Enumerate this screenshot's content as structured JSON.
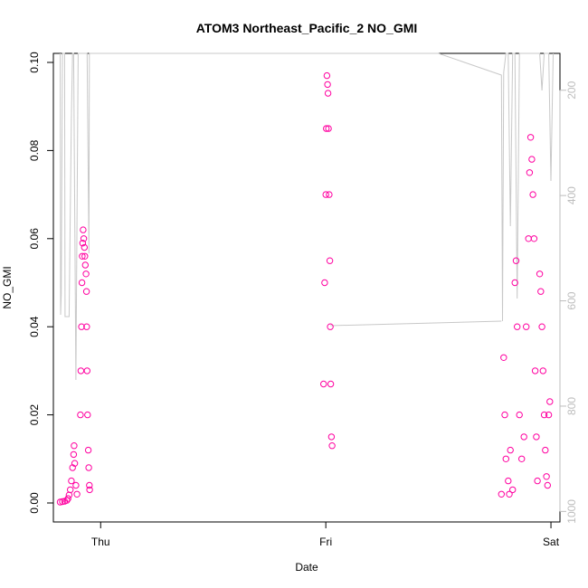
{
  "chart_data": {
    "type": "scatter",
    "title": "ATOM3 Northeast_Pacific_2 NO_GMI",
    "xlabel": "Date",
    "ylabel": "NO_GMI",
    "xlim_days": [
      -0.21,
      2.04
    ],
    "ylim": [
      0,
      0.1
    ],
    "x_ticks": [
      {
        "label": "Thu",
        "value": 0
      },
      {
        "label": "Fri",
        "value": 1
      },
      {
        "label": "Sat",
        "value": 2
      }
    ],
    "y_ticks": [
      "0.00",
      "0.02",
      "0.04",
      "0.06",
      "0.08",
      "0.10"
    ],
    "y_tick_values": [
      0,
      0.02,
      0.04,
      0.06,
      0.08,
      0.1
    ],
    "right_axis": {
      "ylim": [
        1020,
        130
      ],
      "ticks": [
        "200",
        "400",
        "600",
        "800",
        "1000"
      ],
      "tick_values": [
        200,
        400,
        600,
        800,
        1000
      ],
      "color": "#bdbdbd"
    },
    "series": [
      {
        "marker": "open-circle",
        "color": "#ff00a0",
        "points": [
          [
            -0.18,
            0.0002
          ],
          [
            -0.17,
            0.0003
          ],
          [
            -0.16,
            0.0004
          ],
          [
            -0.15,
            0.0006
          ],
          [
            -0.145,
            0.001
          ],
          [
            -0.14,
            0.0018
          ],
          [
            -0.135,
            0.003
          ],
          [
            -0.13,
            0.005
          ],
          [
            -0.125,
            0.008
          ],
          [
            -0.12,
            0.011
          ],
          [
            -0.118,
            0.013
          ],
          [
            -0.115,
            0.009
          ],
          [
            -0.11,
            0.004
          ],
          [
            -0.105,
            0.002
          ],
          [
            -0.09,
            0.02
          ],
          [
            -0.088,
            0.03
          ],
          [
            -0.085,
            0.04
          ],
          [
            -0.083,
            0.05
          ],
          [
            -0.082,
            0.056
          ],
          [
            -0.08,
            0.059
          ],
          [
            -0.078,
            0.062
          ],
          [
            -0.075,
            0.06
          ],
          [
            -0.072,
            0.058
          ],
          [
            -0.07,
            0.056
          ],
          [
            -0.068,
            0.054
          ],
          [
            -0.065,
            0.052
          ],
          [
            -0.063,
            0.048
          ],
          [
            -0.062,
            0.04
          ],
          [
            -0.06,
            0.03
          ],
          [
            -0.058,
            0.02
          ],
          [
            -0.055,
            0.012
          ],
          [
            -0.053,
            0.008
          ],
          [
            -0.05,
            0.004
          ],
          [
            -0.049,
            0.003
          ],
          [
            0.99,
            0.027
          ],
          [
            0.995,
            0.05
          ],
          [
            1.0,
            0.07
          ],
          [
            1.002,
            0.085
          ],
          [
            1.005,
            0.097
          ],
          [
            1.008,
            0.095
          ],
          [
            1.01,
            0.093
          ],
          [
            1.012,
            0.085
          ],
          [
            1.015,
            0.07
          ],
          [
            1.018,
            0.055
          ],
          [
            1.02,
            0.04
          ],
          [
            1.022,
            0.027
          ],
          [
            1.025,
            0.015
          ],
          [
            1.028,
            0.013
          ],
          [
            1.78,
            0.002
          ],
          [
            1.79,
            0.033
          ],
          [
            1.795,
            0.02
          ],
          [
            1.8,
            0.01
          ],
          [
            1.81,
            0.005
          ],
          [
            1.815,
            0.002
          ],
          [
            1.82,
            0.012
          ],
          [
            1.83,
            0.003
          ],
          [
            1.84,
            0.05
          ],
          [
            1.845,
            0.055
          ],
          [
            1.85,
            0.04
          ],
          [
            1.86,
            0.02
          ],
          [
            1.87,
            0.01
          ],
          [
            1.88,
            0.015
          ],
          [
            1.89,
            0.04
          ],
          [
            1.9,
            0.06
          ],
          [
            1.905,
            0.075
          ],
          [
            1.91,
            0.083
          ],
          [
            1.915,
            0.078
          ],
          [
            1.92,
            0.07
          ],
          [
            1.925,
            0.06
          ],
          [
            1.93,
            0.03
          ],
          [
            1.935,
            0.015
          ],
          [
            1.94,
            0.005
          ],
          [
            1.95,
            0.052
          ],
          [
            1.955,
            0.048
          ],
          [
            1.96,
            0.04
          ],
          [
            1.965,
            0.03
          ],
          [
            1.97,
            0.02
          ],
          [
            1.975,
            0.012
          ],
          [
            1.98,
            0.006
          ],
          [
            1.985,
            0.004
          ],
          [
            1.99,
            0.02
          ],
          [
            1.995,
            0.023
          ]
        ]
      }
    ]
  }
}
